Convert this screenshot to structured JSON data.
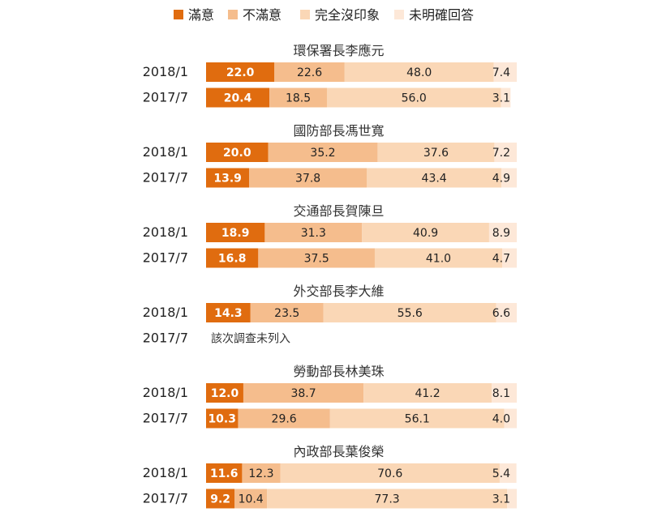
{
  "chart_data": {
    "type": "bar",
    "stacked": true,
    "orientation": "horizontal",
    "legend": {
      "placement": "top",
      "items": [
        {
          "name": "滿意",
          "color": "#e06c0f"
        },
        {
          "name": "不滿意",
          "color": "#f5bd8d"
        },
        {
          "name": "完全沒印象",
          "color": "#fad7b6"
        },
        {
          "name": "未明確回答",
          "color": "#fde8d8"
        }
      ]
    },
    "xlim": [
      0,
      100
    ],
    "grid": false,
    "groups": [
      {
        "title": "環保署長李應元",
        "rows": [
          {
            "label": "2018/1",
            "values": [
              22.0,
              22.6,
              48.0,
              7.4
            ]
          },
          {
            "label": "2017/7",
            "values": [
              20.4,
              18.5,
              56.0,
              3.1
            ]
          }
        ]
      },
      {
        "title": "國防部長馮世寬",
        "rows": [
          {
            "label": "2018/1",
            "values": [
              20.0,
              35.2,
              37.6,
              7.2
            ]
          },
          {
            "label": "2017/7",
            "values": [
              13.9,
              37.8,
              43.4,
              4.9
            ]
          }
        ]
      },
      {
        "title": "交通部長賀陳旦",
        "rows": [
          {
            "label": "2018/1",
            "values": [
              18.9,
              31.3,
              40.9,
              8.9
            ]
          },
          {
            "label": "2017/7",
            "values": [
              16.8,
              37.5,
              41.0,
              4.7
            ]
          }
        ]
      },
      {
        "title": "外交部長李大維",
        "rows": [
          {
            "label": "2018/1",
            "values": [
              14.3,
              23.5,
              55.6,
              6.6
            ]
          },
          {
            "label": "2017/7",
            "values": null,
            "note": "該次調查未列入"
          }
        ]
      },
      {
        "title": "勞動部長林美珠",
        "rows": [
          {
            "label": "2018/1",
            "values": [
              12.0,
              38.7,
              41.2,
              8.1
            ]
          },
          {
            "label": "2017/7",
            "values": [
              10.3,
              29.6,
              56.1,
              4.0
            ]
          }
        ]
      },
      {
        "title": "內政部長葉俊榮",
        "rows": [
          {
            "label": "2018/1",
            "values": [
              11.6,
              12.3,
              70.6,
              5.4
            ]
          },
          {
            "label": "2017/7",
            "values": [
              9.2,
              10.4,
              77.3,
              3.1
            ]
          }
        ]
      }
    ]
  }
}
